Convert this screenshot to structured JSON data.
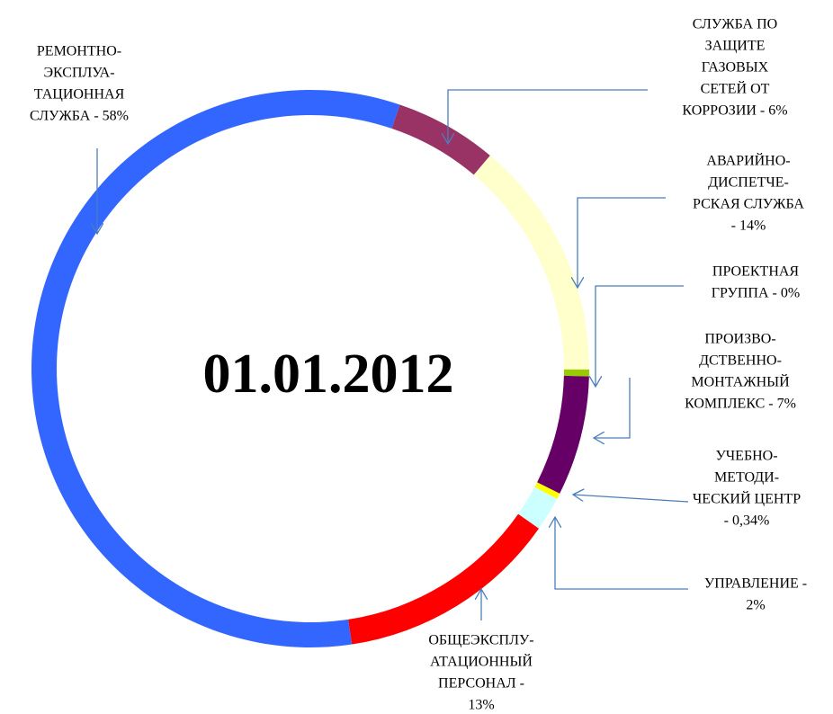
{
  "chart_data": {
    "type": "donut",
    "title": "01.01.2012",
    "values": [
      6,
      14,
      0.4,
      7,
      0.34,
      2,
      13,
      58
    ],
    "colors": [
      "#993366",
      "#ffffcc",
      "#99cc00",
      "#660066",
      "#ffff00",
      "#ccffff",
      "#ff0000",
      "#3366ff"
    ],
    "labels": [
      [
        "СЛУЖБА ПО",
        "ЗАЩИТЕ",
        "ГАЗОВЫХ",
        "СЕТЕЙ ОТ",
        "КОРРОЗИИ - 6%"
      ],
      [
        "АВАРИЙНО-",
        "ДИСПЕТЧЕ-",
        "РСКАЯ СЛУЖБА",
        "- 14%"
      ],
      [
        "ПРОЕКТНАЯ",
        "ГРУППА - 0%"
      ],
      [
        "ПРОИЗВО-",
        "ДСТВЕННО-",
        "МОНТАЖНЫЙ",
        "КОМПЛЕКС - 7%"
      ],
      [
        "УЧЕБНО-",
        "МЕТОДИ-",
        "ЧЕСКИЙ ЦЕНТР",
        "- 0,34%"
      ],
      [
        "УПРАВЛЕНИЕ -",
        "2%"
      ],
      [
        "ОБЩЕЭКСПЛУ-",
        "АТАЦИОННЫЙ",
        "ПЕРСОНАЛ -",
        "13%"
      ],
      [
        "РЕМОНТНО-",
        "ЭКСПЛУА-",
        "ТАЦИОННАЯ",
        "СЛУЖБА - 58%"
      ]
    ]
  }
}
